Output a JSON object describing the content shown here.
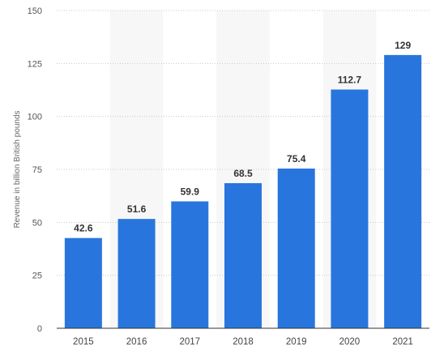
{
  "chart_data": {
    "type": "bar",
    "categories": [
      "2015",
      "2016",
      "2017",
      "2018",
      "2019",
      "2020",
      "2021"
    ],
    "values": [
      42.6,
      51.6,
      59.9,
      68.5,
      75.4,
      112.7,
      129
    ],
    "value_labels": [
      "42.6",
      "51.6",
      "59.9",
      "68.5",
      "75.4",
      "112.7",
      "129"
    ],
    "ylabel": "Revenue in billion British pounds",
    "ylim": [
      0,
      150
    ],
    "yticks": [
      "0",
      "25",
      "50",
      "75",
      "100",
      "125",
      "150"
    ],
    "grid": true,
    "bar_color": "#2876dd",
    "band_color": "#f7f7f7"
  }
}
